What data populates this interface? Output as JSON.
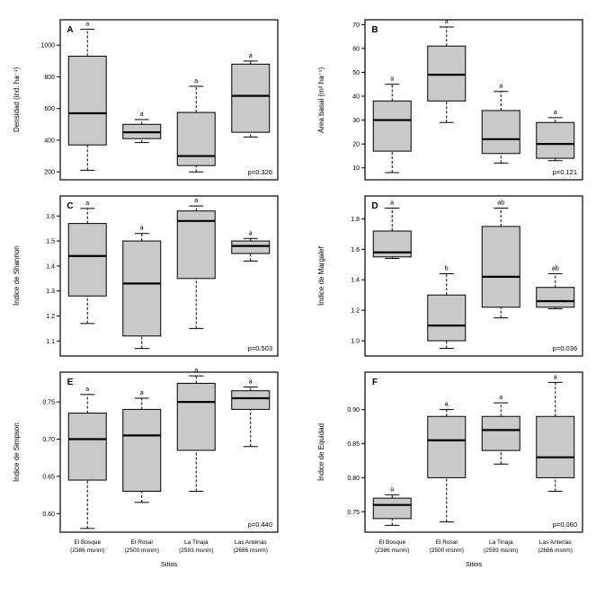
{
  "figure": {
    "background": "#ffffff",
    "box_stroke": "#000000"
  },
  "chart_data": {
    "type": "boxplot",
    "layout": "2x3-grid",
    "categories": [
      "El Bosque",
      "El Rosal",
      "La Tinaja",
      "Las Antenas"
    ],
    "category_sublabels": [
      "(2386 msnm)",
      "(2500 msnm)",
      "(2593 msnm)",
      "(2686 msnm)"
    ],
    "xlabel": "Sitios",
    "box_fill": "#c9c9c9",
    "panels": [
      {
        "id": "A",
        "ylabel": "Densidad (ind. ha⁻¹)",
        "p_label": "p=0.326",
        "ylim": [
          150,
          1160
        ],
        "ytick_values": [
          200,
          400,
          600,
          800,
          1000
        ],
        "ytick_labels": [
          "200",
          "400",
          "600",
          "800",
          "1000"
        ],
        "boxes": [
          {
            "low": 210,
            "q1": 370,
            "median": 570,
            "q3": 930,
            "high": 1100,
            "letter": "a"
          },
          {
            "low": 385,
            "q1": 410,
            "median": 450,
            "q3": 500,
            "high": 530,
            "letter": "a"
          },
          {
            "low": 200,
            "q1": 240,
            "median": 300,
            "q3": 575,
            "high": 740,
            "letter": "a"
          },
          {
            "low": 420,
            "q1": 450,
            "median": 680,
            "q3": 880,
            "high": 900,
            "letter": "a"
          }
        ]
      },
      {
        "id": "B",
        "ylabel": "Área basal (m² ha⁻¹)",
        "p_label": "p=0.121",
        "ylim": [
          5,
          72
        ],
        "ytick_values": [
          10,
          20,
          30,
          40,
          50,
          60,
          70
        ],
        "ytick_labels": [
          "10",
          "20",
          "30",
          "40",
          "50",
          "60",
          "70"
        ],
        "boxes": [
          {
            "low": 8,
            "q1": 17,
            "median": 30,
            "q3": 38,
            "high": 45,
            "letter": "a"
          },
          {
            "low": 29,
            "q1": 38,
            "median": 49,
            "q3": 61,
            "high": 69,
            "letter": "a"
          },
          {
            "low": 12,
            "q1": 16,
            "median": 22,
            "q3": 34,
            "high": 42,
            "letter": "a"
          },
          {
            "low": 13,
            "q1": 14,
            "median": 20,
            "q3": 29,
            "high": 31,
            "letter": "a"
          }
        ]
      },
      {
        "id": "C",
        "ylabel": "Índice de Shannon",
        "p_label": "p=0.503",
        "ylim": [
          1.04,
          1.68
        ],
        "ytick_values": [
          1.1,
          1.2,
          1.3,
          1.4,
          1.5,
          1.6
        ],
        "ytick_labels": [
          "1.1",
          "1.2",
          "1.3",
          "1.4",
          "1.5",
          "1.6"
        ],
        "boxes": [
          {
            "low": 1.17,
            "q1": 1.28,
            "median": 1.44,
            "q3": 1.57,
            "high": 1.63,
            "letter": "a"
          },
          {
            "low": 1.07,
            "q1": 1.12,
            "median": 1.33,
            "q3": 1.5,
            "high": 1.53,
            "letter": "a"
          },
          {
            "low": 1.15,
            "q1": 1.35,
            "median": 1.58,
            "q3": 1.62,
            "high": 1.64,
            "letter": "a"
          },
          {
            "low": 1.42,
            "q1": 1.45,
            "median": 1.48,
            "q3": 1.5,
            "high": 1.51,
            "letter": "a"
          }
        ]
      },
      {
        "id": "D",
        "ylabel": "Índice de Margalef",
        "p_label": "p=0.036",
        "ylim": [
          0.9,
          1.95
        ],
        "ytick_values": [
          1.0,
          1.2,
          1.4,
          1.6,
          1.8
        ],
        "ytick_labels": [
          "1.0",
          "1.2",
          "1.4",
          "1.6",
          "1.8"
        ],
        "boxes": [
          {
            "low": 1.54,
            "q1": 1.55,
            "median": 1.58,
            "q3": 1.72,
            "high": 1.87,
            "letter": "a"
          },
          {
            "low": 0.95,
            "q1": 1.0,
            "median": 1.1,
            "q3": 1.3,
            "high": 1.44,
            "letter": "b"
          },
          {
            "low": 1.15,
            "q1": 1.22,
            "median": 1.42,
            "q3": 1.75,
            "high": 1.87,
            "letter": "ab"
          },
          {
            "low": 1.21,
            "q1": 1.22,
            "median": 1.26,
            "q3": 1.35,
            "high": 1.44,
            "letter": "ab"
          }
        ]
      },
      {
        "id": "E",
        "ylabel": "Índice de Simpson",
        "p_label": "p=0.440",
        "ylim": [
          0.575,
          0.79
        ],
        "ytick_values": [
          0.6,
          0.65,
          0.7,
          0.75
        ],
        "ytick_labels": [
          "0.60",
          "0.65",
          "0.70",
          "0.75"
        ],
        "boxes": [
          {
            "low": 0.58,
            "q1": 0.645,
            "median": 0.7,
            "q3": 0.735,
            "high": 0.76,
            "letter": "a"
          },
          {
            "low": 0.615,
            "q1": 0.63,
            "median": 0.705,
            "q3": 0.74,
            "high": 0.755,
            "letter": "a"
          },
          {
            "low": 0.63,
            "q1": 0.685,
            "median": 0.75,
            "q3": 0.775,
            "high": 0.785,
            "letter": "a"
          },
          {
            "low": 0.69,
            "q1": 0.74,
            "median": 0.755,
            "q3": 0.765,
            "high": 0.77,
            "letter": "a"
          }
        ]
      },
      {
        "id": "F",
        "ylabel": "Índice de Equidad",
        "p_label": "p=0.060",
        "ylim": [
          0.72,
          0.955
        ],
        "ytick_values": [
          0.75,
          0.8,
          0.85,
          0.9
        ],
        "ytick_labels": [
          "0.75",
          "0.80",
          "0.85",
          "0.90"
        ],
        "boxes": [
          {
            "low": 0.73,
            "q1": 0.74,
            "median": 0.76,
            "q3": 0.77,
            "high": 0.775,
            "letter": "a"
          },
          {
            "low": 0.735,
            "q1": 0.8,
            "median": 0.855,
            "q3": 0.89,
            "high": 0.9,
            "letter": "a"
          },
          {
            "low": 0.82,
            "q1": 0.84,
            "median": 0.87,
            "q3": 0.89,
            "high": 0.91,
            "letter": "a"
          },
          {
            "low": 0.78,
            "q1": 0.8,
            "median": 0.83,
            "q3": 0.89,
            "high": 0.94,
            "letter": "a"
          }
        ]
      }
    ]
  }
}
